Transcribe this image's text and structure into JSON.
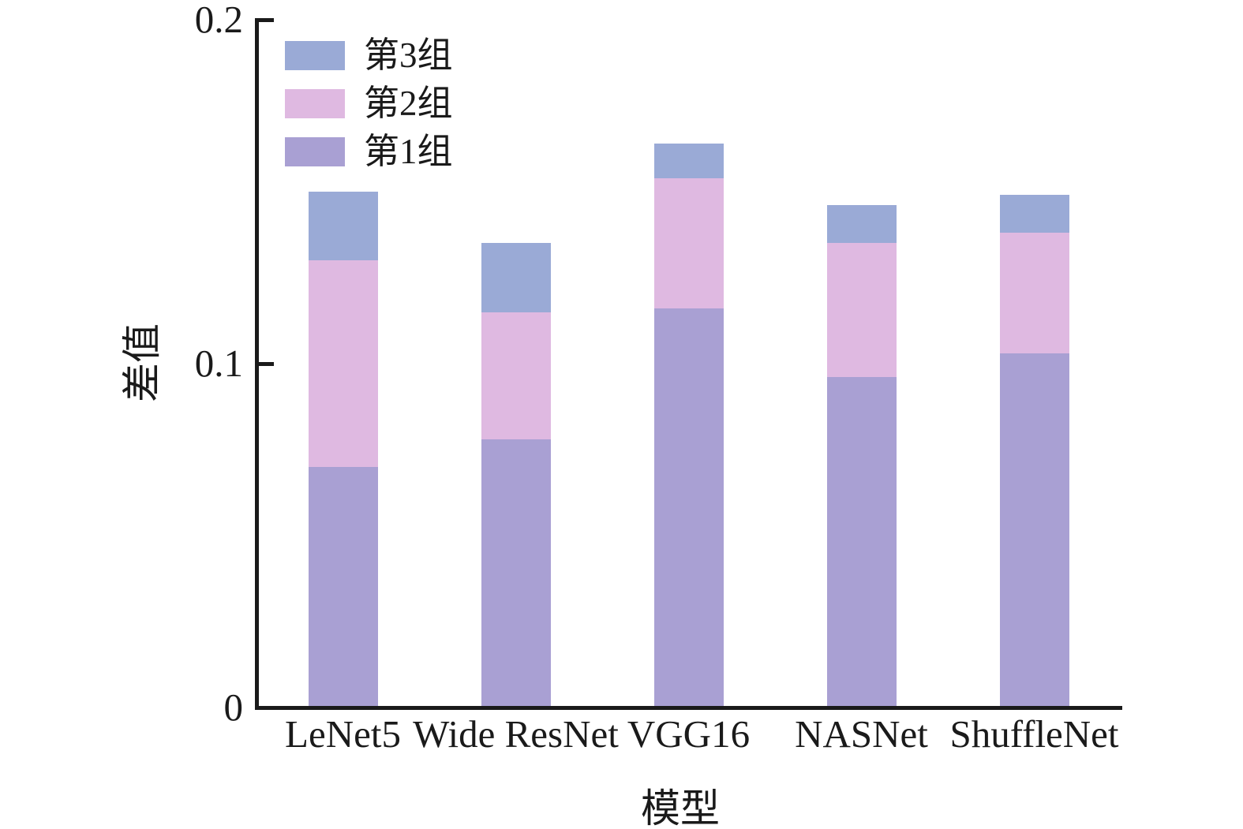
{
  "chart_data": {
    "type": "bar",
    "stacked": true,
    "title": "",
    "xlabel": "模型",
    "ylabel": "差值",
    "categories": [
      "LeNet5",
      "Wide ResNet",
      "VGG16",
      "NASNet",
      "ShuffleNet"
    ],
    "series": [
      {
        "name": "第1组",
        "color": "#a9a0d3",
        "values": [
          0.07,
          0.078,
          0.116,
          0.096,
          0.103
        ]
      },
      {
        "name": "第2组",
        "color": "#dfb9e1",
        "values": [
          0.06,
          0.037,
          0.038,
          0.039,
          0.035
        ]
      },
      {
        "name": "第3组",
        "color": "#9aaad6",
        "values": [
          0.02,
          0.02,
          0.01,
          0.011,
          0.011
        ]
      }
    ],
    "stack_totals": [
      0.15,
      0.135,
      0.164,
      0.146,
      0.149
    ],
    "ylim": [
      0,
      0.2
    ],
    "yticks": [
      0,
      0.1,
      0.2
    ],
    "ytick_labels": [
      "0",
      "0.1",
      "0.2"
    ],
    "legend": {
      "position": "upper-left-inside",
      "entries": [
        "第3组",
        "第2组",
        "第1组"
      ]
    },
    "grid": false,
    "axis_color": "#1a1a1a",
    "background": "#ffffff"
  }
}
